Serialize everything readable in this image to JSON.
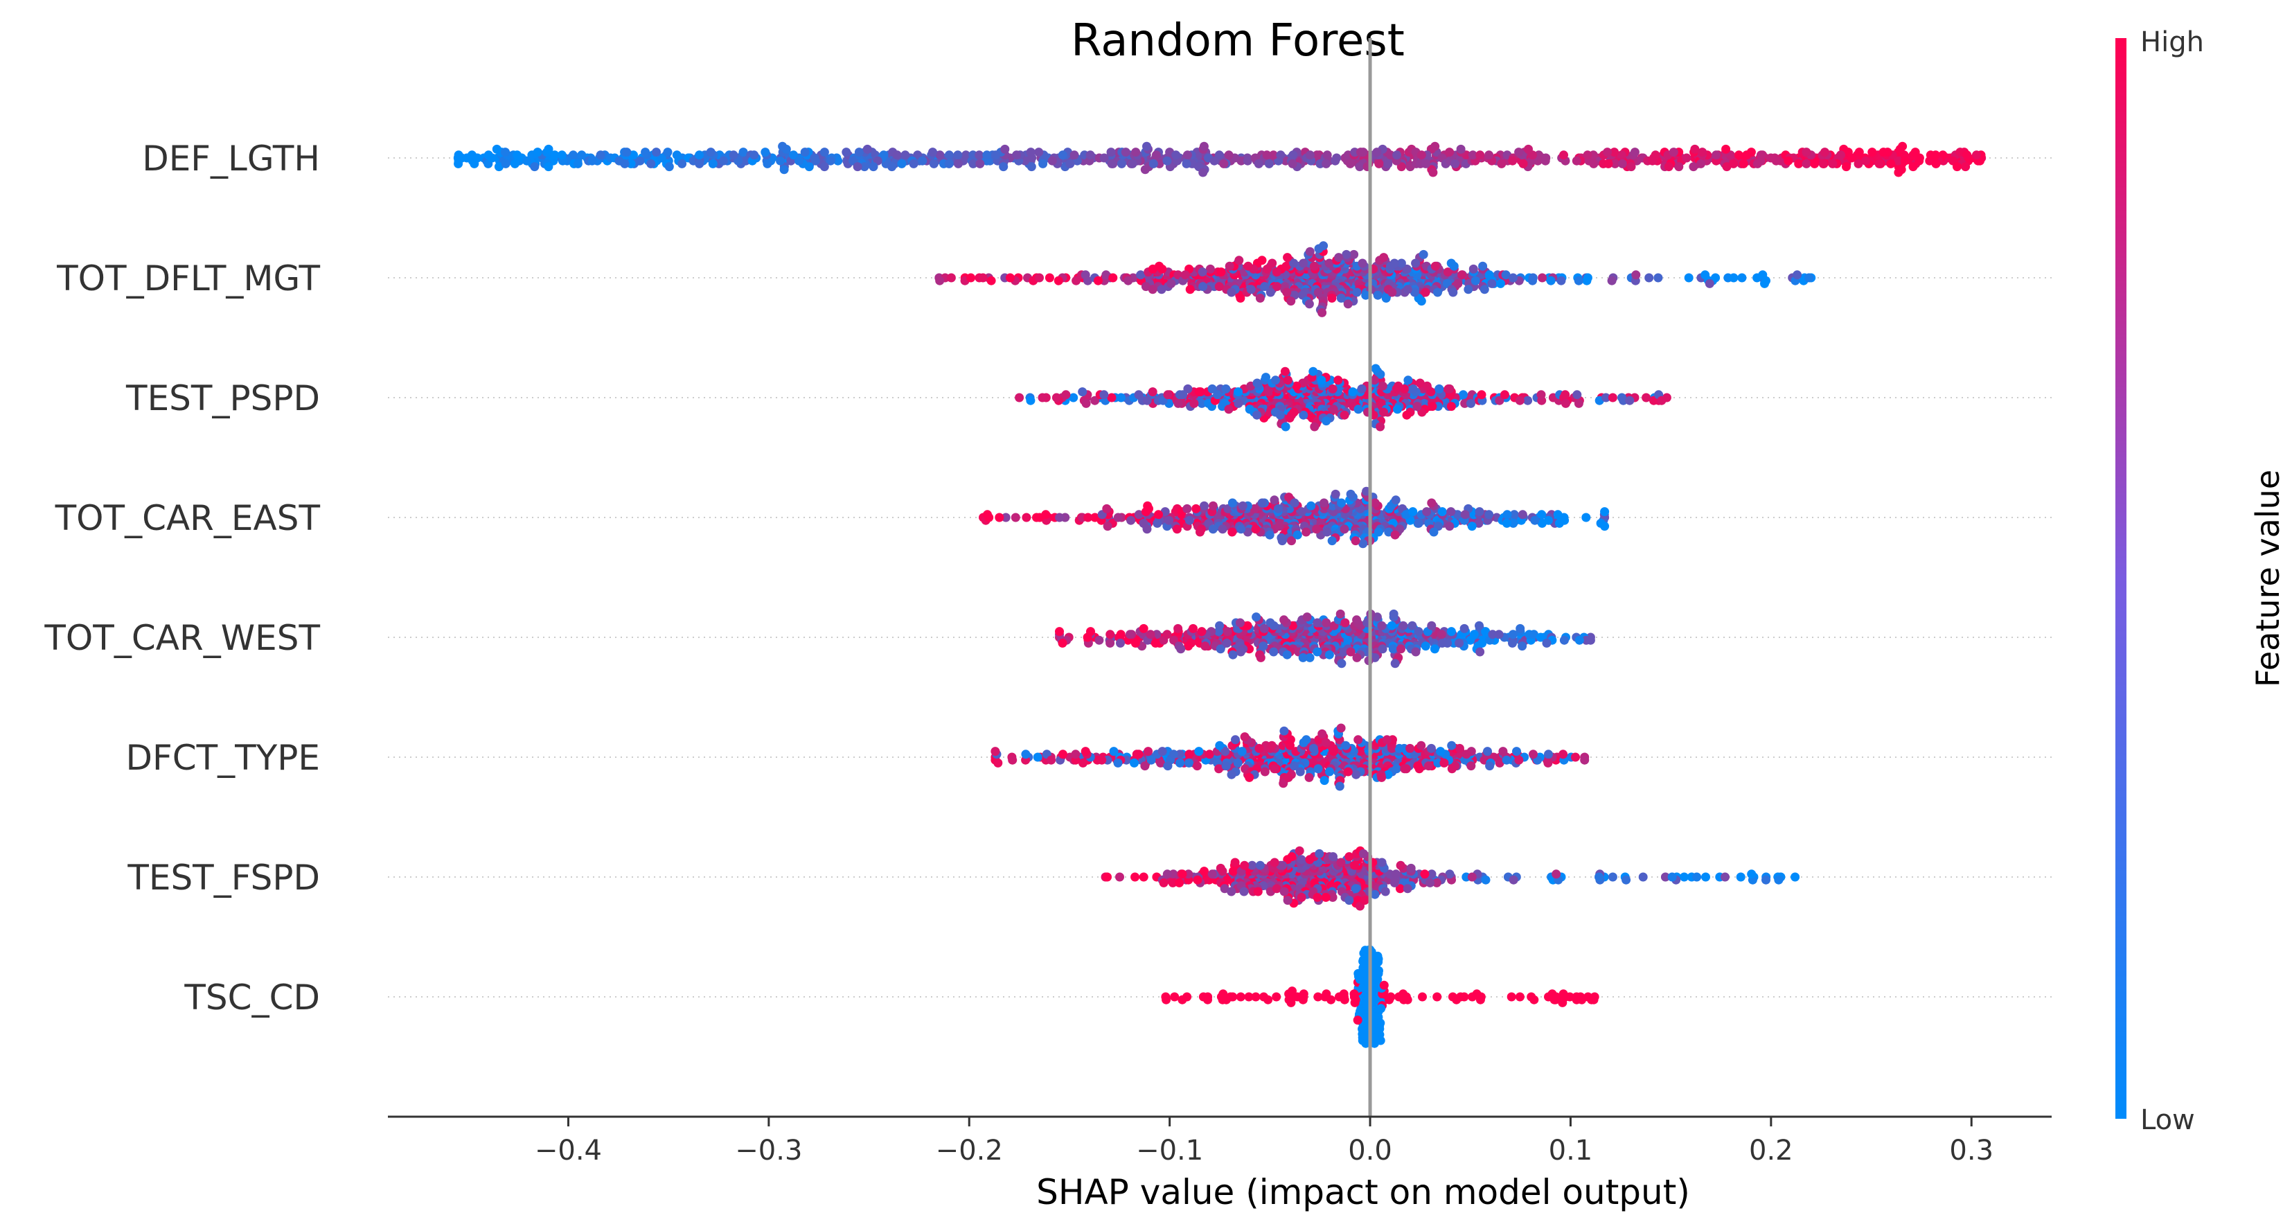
{
  "chart_data": {
    "type": "scatter",
    "title": "Random Forest",
    "xlabel": "SHAP value (impact on model output)",
    "xlim": [
      -0.49,
      0.34
    ],
    "xticks": [
      {
        "value": -0.4,
        "label": "−0.4"
      },
      {
        "value": -0.3,
        "label": "−0.3"
      },
      {
        "value": -0.2,
        "label": "−0.2"
      },
      {
        "value": -0.1,
        "label": "−0.1"
      },
      {
        "value": 0.0,
        "label": "0.0"
      },
      {
        "value": 0.1,
        "label": "0.1"
      },
      {
        "value": 0.2,
        "label": "0.2"
      },
      {
        "value": 0.3,
        "label": "0.3"
      }
    ],
    "features": [
      {
        "name": "DEF_LGTH",
        "min": -0.455,
        "max": 0.305,
        "low_side": "negative",
        "spread": 0.16,
        "count": 900
      },
      {
        "name": "TOT_DFLT_MGT",
        "min": -0.215,
        "max": 0.22,
        "low_side": "positive",
        "spread": 0.05,
        "count": 650
      },
      {
        "name": "TEST_PSPD",
        "min": -0.175,
        "max": 0.148,
        "low_side": "mixed",
        "spread": 0.045,
        "count": 550
      },
      {
        "name": "TOT_CAR_EAST",
        "min": -0.193,
        "max": 0.117,
        "low_side": "positive",
        "spread": 0.05,
        "count": 550
      },
      {
        "name": "TOT_CAR_WEST",
        "min": -0.155,
        "max": 0.11,
        "low_side": "positive",
        "spread": 0.05,
        "count": 550
      },
      {
        "name": "DFCT_TYPE",
        "min": -0.187,
        "max": 0.107,
        "low_side": "mixed",
        "spread": 0.05,
        "count": 550
      },
      {
        "name": "TEST_FSPD",
        "min": -0.132,
        "max": 0.212,
        "low_side": "positive",
        "spread": 0.03,
        "count": 450
      },
      {
        "name": "TSC_CD",
        "min": -0.102,
        "max": 0.112,
        "low_side": "center",
        "spread": 0.002,
        "count": 260
      }
    ],
    "colorbar": {
      "title": "Feature value",
      "high_label": "High",
      "low_label": "Low",
      "low_color": "#008bfb",
      "high_color": "#ff0051"
    },
    "grid": false,
    "legend": "colorbar-right"
  }
}
